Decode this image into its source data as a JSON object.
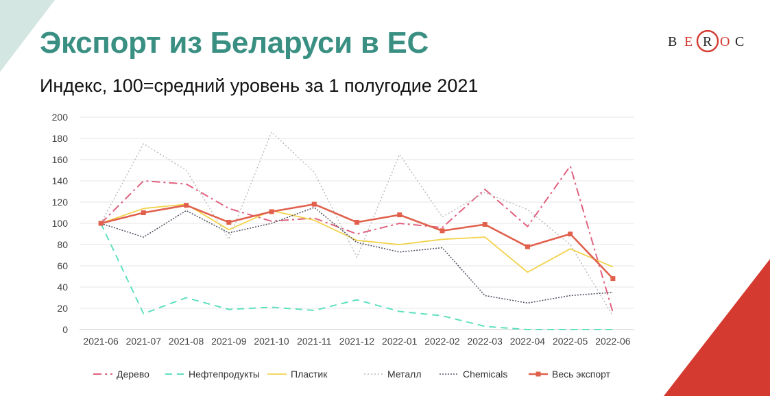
{
  "slide": {
    "title": "Экспорт из Беларуси в ЕС",
    "subtitle": "Индекс, 100=средний уровень за 1 полугодие 2021",
    "logo": {
      "letters": [
        "B",
        "E",
        "R",
        "O",
        "C"
      ],
      "text_color": "#222222",
      "accent_color": "#d43a2f"
    },
    "colors": {
      "teal_triangle": "#d4e6e2",
      "red_triangle": "#d43a2f",
      "title": "#3a8f83"
    }
  },
  "chart_data": {
    "type": "line",
    "title": "",
    "xlabel": "",
    "ylabel": "",
    "ylim": [
      0,
      200
    ],
    "yticks": [
      "0",
      "20",
      "40",
      "60",
      "80",
      "100",
      "120",
      "140",
      "160",
      "180",
      "200"
    ],
    "grid": true,
    "legend_position": "bottom",
    "categories": [
      "2021-06",
      "2021-07",
      "2021-08",
      "2021-09",
      "2021-10",
      "2021-11",
      "2021-12",
      "2022-01",
      "2022-02",
      "2022-03",
      "2022-04",
      "2022-05",
      "2022-06"
    ],
    "series": [
      {
        "name": "Дерево",
        "color": "#e0607e",
        "style": "dashdot",
        "markers": false,
        "values": [
          100,
          140,
          137,
          114,
          102,
          105,
          90,
          100,
          96,
          132,
          97,
          154,
          16
        ]
      },
      {
        "name": "Нефтепродукты",
        "color": "#5ee0bf",
        "style": "dashed",
        "markers": false,
        "values": [
          100,
          15,
          30,
          19,
          21,
          18,
          28,
          17,
          13,
          3,
          0,
          0,
          0
        ]
      },
      {
        "name": "Пластик",
        "color": "#f2d24a",
        "style": "solid",
        "markers": false,
        "values": [
          100,
          114,
          118,
          94,
          112,
          103,
          84,
          80,
          85,
          87,
          54,
          76,
          59
        ]
      },
      {
        "name": "Металл",
        "color": "#b8b8b8",
        "style": "dotted",
        "markers": false,
        "values": [
          100,
          175,
          150,
          85,
          186,
          148,
          68,
          165,
          106,
          129,
          113,
          80,
          13
        ]
      },
      {
        "name": "Chemicals",
        "color": "#555566",
        "style": "dotted-dense",
        "markers": false,
        "values": [
          100,
          87,
          112,
          91,
          100,
          115,
          82,
          73,
          77,
          32,
          25,
          32,
          35
        ]
      },
      {
        "name": "Весь экспорт",
        "color": "#e0604c",
        "style": "solid",
        "markers": true,
        "values": [
          100,
          110,
          117,
          101,
          111,
          118,
          101,
          108,
          93,
          99,
          78,
          90,
          48
        ]
      }
    ]
  }
}
